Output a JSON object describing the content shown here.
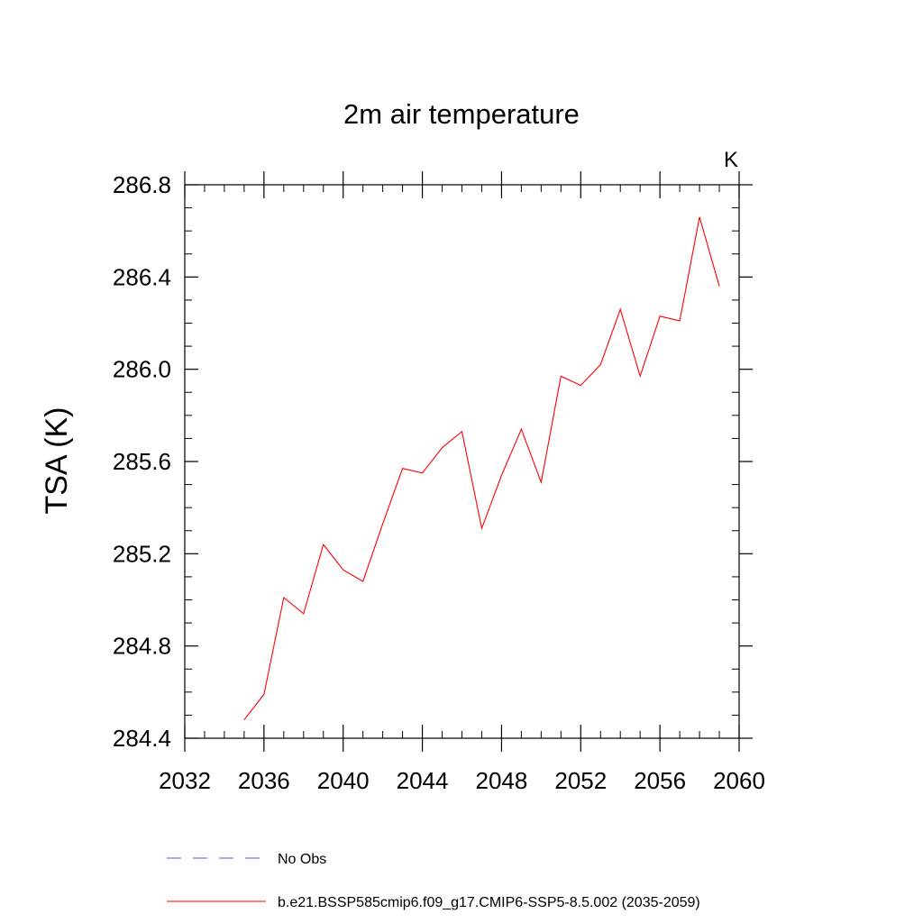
{
  "chart_data": {
    "type": "line",
    "title": "2m air temperature",
    "units_label": "K",
    "xlabel": "",
    "ylabel": "TSA  (K)",
    "xlim": [
      2032,
      2060
    ],
    "ylim": [
      284.4,
      286.8
    ],
    "x_ticks": [
      2032,
      2036,
      2040,
      2044,
      2048,
      2052,
      2056,
      2060
    ],
    "x_tick_labels": [
      "2032",
      "2036",
      "2040",
      "2044",
      "2048",
      "2052",
      "2056",
      "2060"
    ],
    "x_minor_step": 1,
    "y_ticks": [
      284.4,
      284.8,
      285.2,
      285.6,
      286.0,
      286.4,
      286.8
    ],
    "y_tick_labels": [
      "284.4",
      "284.8",
      "285.2",
      "285.6",
      "286.0",
      "286.4",
      "286.8"
    ],
    "y_minor_step": 0.1,
    "grid": false,
    "legend_position": "bottom",
    "series": [
      {
        "name": "No Obs",
        "color": "#5a5acd",
        "dashed": true,
        "x": [],
        "y": []
      },
      {
        "name": "b.e21.BSSP585cmip6.f09_g17.CMIP6-SSP5-8.5.002 (2035-2059)",
        "color": "#ff0000",
        "dashed": false,
        "x": [
          2035,
          2036,
          2037,
          2038,
          2039,
          2040,
          2041,
          2042,
          2043,
          2044,
          2045,
          2046,
          2047,
          2048,
          2049,
          2050,
          2051,
          2052,
          2053,
          2054,
          2055,
          2056,
          2057,
          2058,
          2059
        ],
        "y": [
          284.48,
          284.59,
          285.01,
          284.94,
          285.24,
          285.13,
          285.08,
          285.33,
          285.57,
          285.55,
          285.66,
          285.73,
          285.31,
          285.54,
          285.74,
          285.51,
          285.97,
          285.93,
          286.02,
          286.26,
          285.97,
          286.23,
          286.21,
          286.66,
          286.36
        ]
      }
    ]
  }
}
